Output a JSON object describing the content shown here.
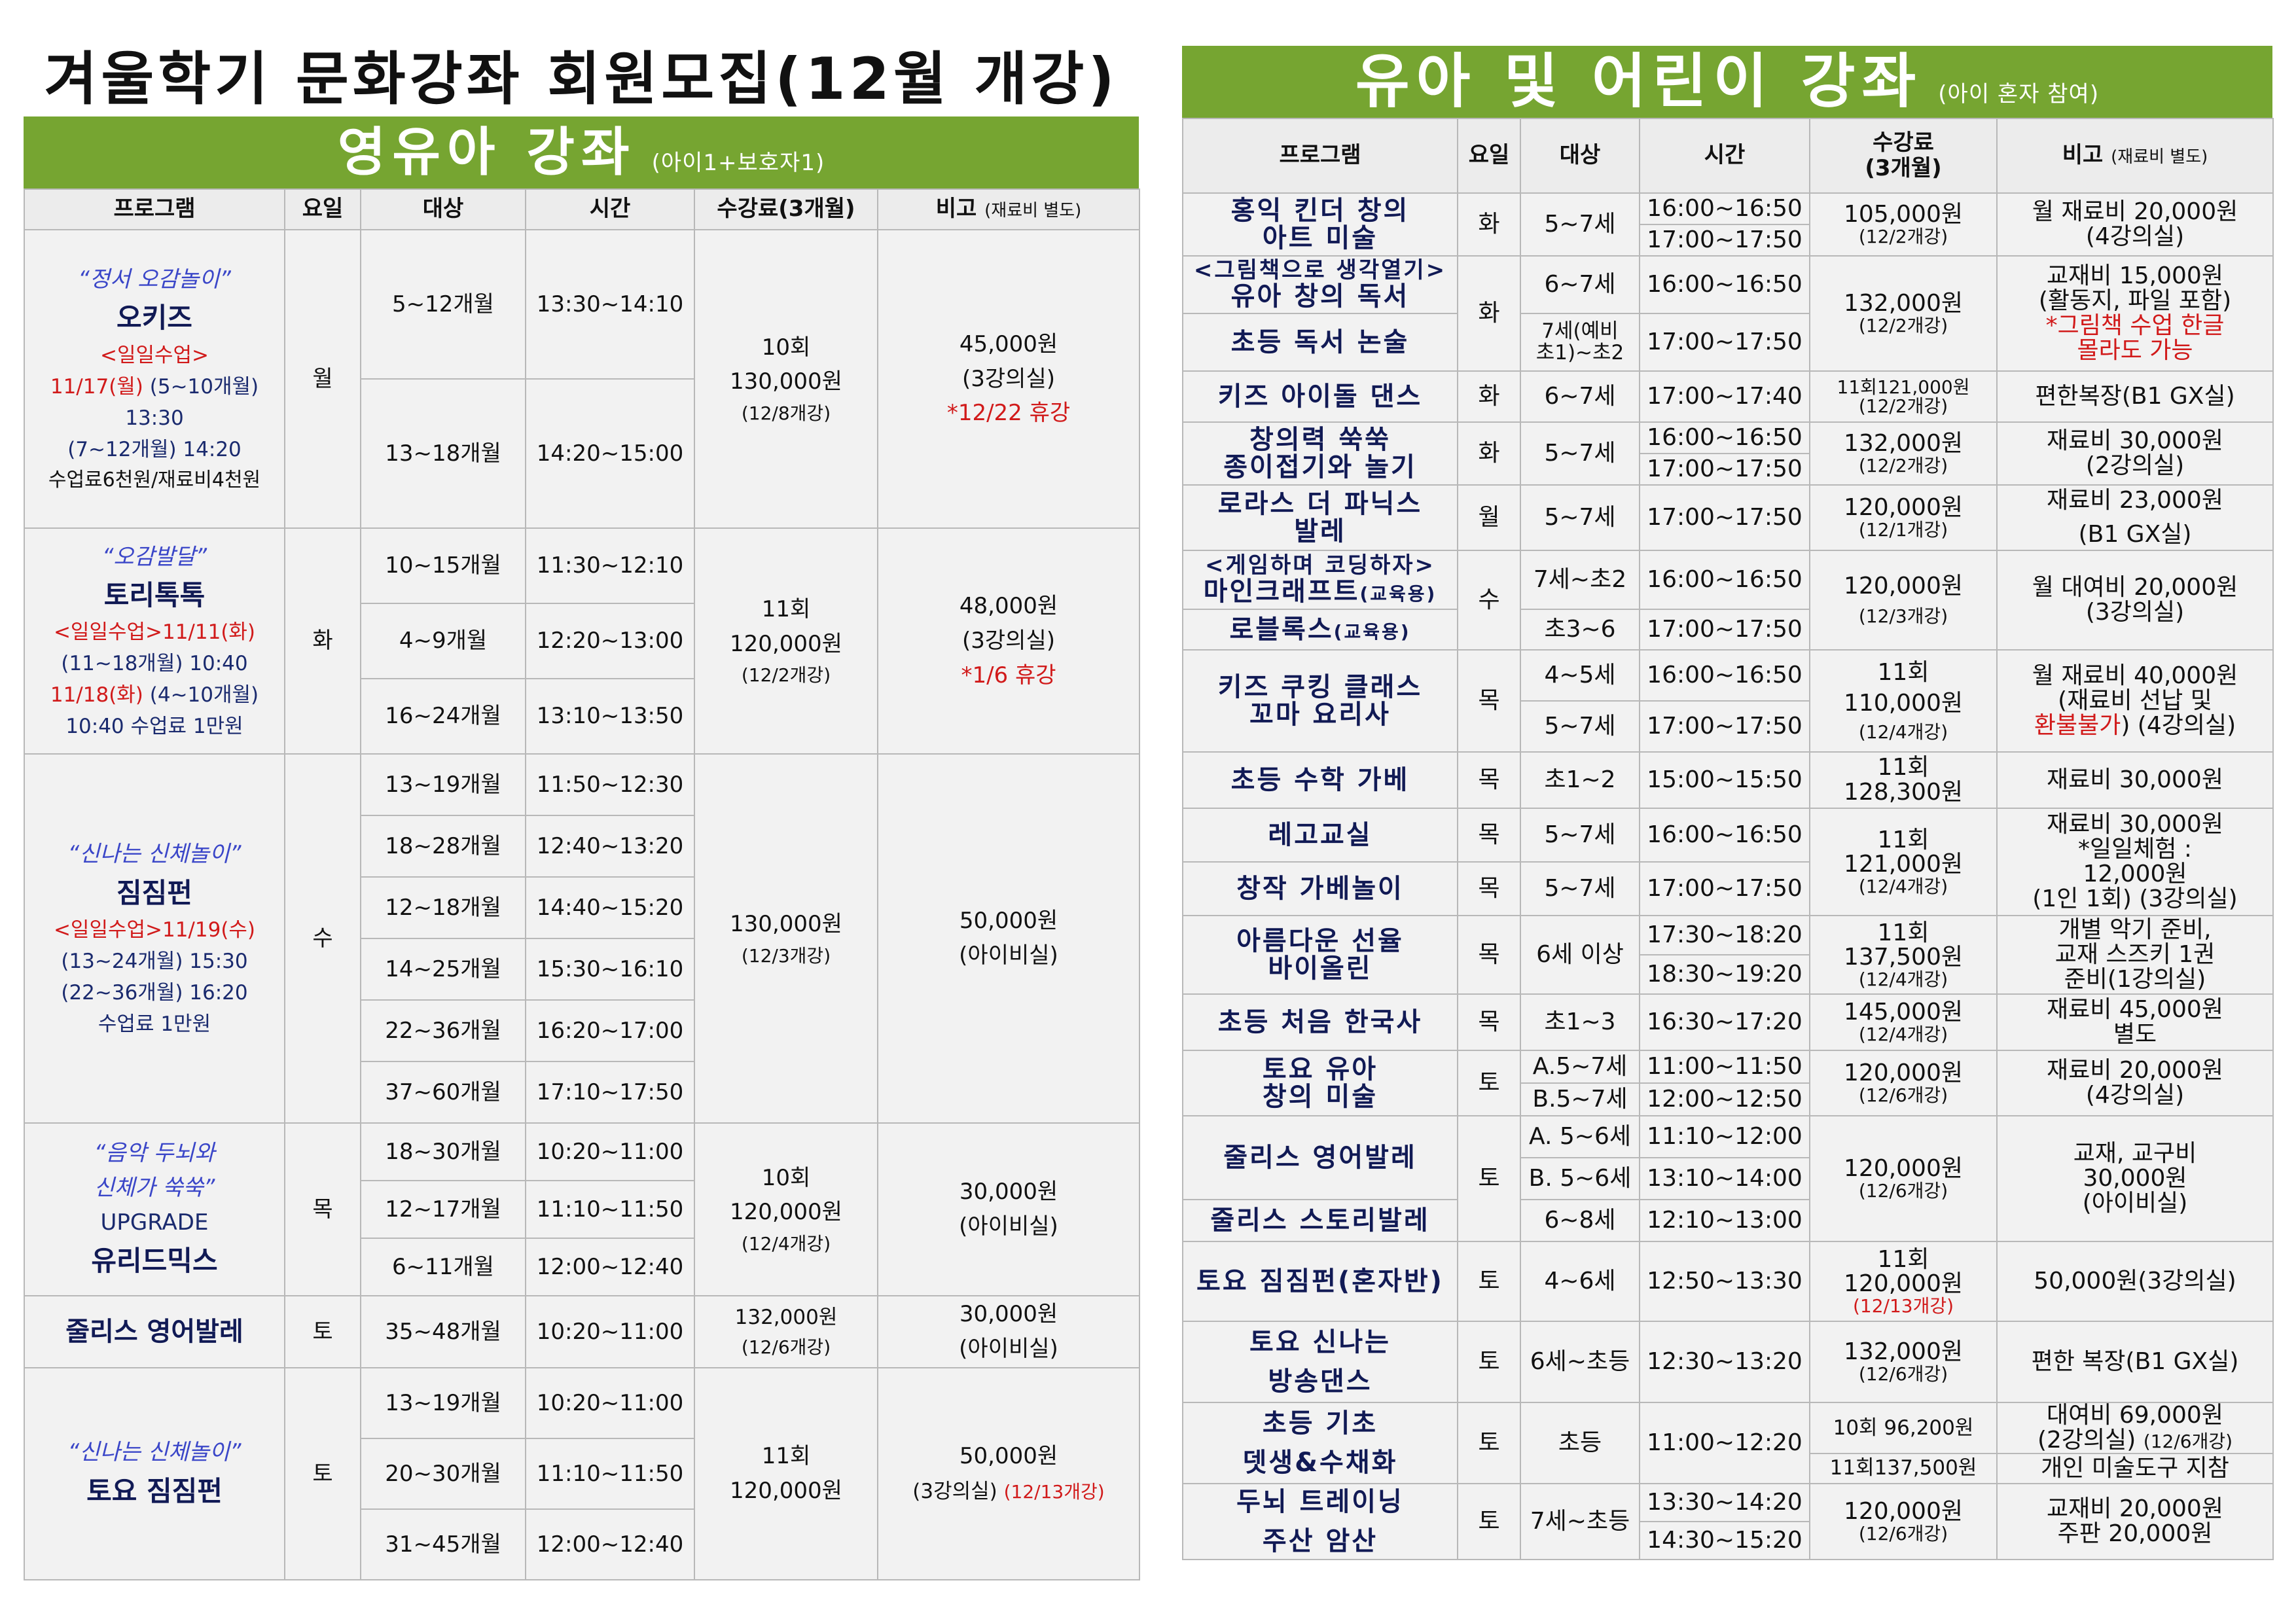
{
  "left": {
    "title": "겨울학기 문화강좌 회원모집(12월 개강)",
    "banner": {
      "title": "영유아 강좌",
      "sub": "(아이1+보호자1)"
    },
    "headers": {
      "program": "프로그램",
      "day": "요일",
      "target": "대상",
      "time": "시간",
      "fee": "수강료(3개월)",
      "note": "비고",
      "note_small": "(재료비 별도)"
    },
    "groups": [
      {
        "tag": "“정서 오감놀이”",
        "name": "오키즈",
        "promo": "<일일수업>",
        "detail1a": "11/17(월)",
        "detail1b": " (5~10개월)",
        "detail2": "13:30",
        "detail3": "(7~12개월) 14:20",
        "detail4": "수업료6천원/재료비4천원",
        "day": "월",
        "rows": [
          {
            "target": "5~12개월",
            "time": "13:30~14:10"
          },
          {
            "target": "13~18개월",
            "time": "14:20~15:00"
          }
        ],
        "fee1": "10회",
        "fee2": "130,000원",
        "fee3": "(12/8개강)",
        "note1": "45,000원",
        "note2": "(3강의실)",
        "note3": "*12/22 휴강"
      },
      {
        "tag": "“오감발달”",
        "name": "토리톡톡",
        "promo": "<일일수업>11/11(화)",
        "detail1": "(11~18개월) 10:40",
        "detail2a": "11/18(화)",
        "detail2b": " (4~10개월)",
        "detail3": "10:40 수업료 1만원",
        "day": "화",
        "rows": [
          {
            "target": "10~15개월",
            "time": "11:30~12:10"
          },
          {
            "target": "4~9개월",
            "time": "12:20~13:00"
          },
          {
            "target": "16~24개월",
            "time": "13:10~13:50"
          }
        ],
        "fee1": "11회",
        "fee2": "120,000원",
        "fee3": "(12/2개강)",
        "note1": "48,000원",
        "note2": "(3강의실)",
        "note3": "*1/6 휴강"
      },
      {
        "tag": "“신나는 신체놀이”",
        "name": "짐짐펀",
        "promo": "<일일수업>11/19(수)",
        "detail1": "(13~24개월) 15:30",
        "detail2": "(22~36개월) 16:20",
        "detail3": "수업료 1만원",
        "day": "수",
        "rows": [
          {
            "target": "13~19개월",
            "time": "11:50~12:30"
          },
          {
            "target": "18~28개월",
            "time": "12:40~13:20"
          },
          {
            "target": "12~18개월",
            "time": "14:40~15:20"
          },
          {
            "target": "14~25개월",
            "time": "15:30~16:10"
          },
          {
            "target": "22~36개월",
            "time": "16:20~17:00"
          },
          {
            "target": "37~60개월",
            "time": "17:10~17:50"
          }
        ],
        "fee1": "130,000원",
        "fee2": "(12/3개강)",
        "note1": "50,000원",
        "note2": "(아이비실)"
      },
      {
        "tag1": "“음악 두뇌와",
        "tag2": "신체가 쑥쑥”",
        "upgrade": "UPGRADE",
        "name": "유리드믹스",
        "day": "목",
        "rows": [
          {
            "target": "18~30개월",
            "time": "10:20~11:00"
          },
          {
            "target": "12~17개월",
            "time": "11:10~11:50"
          },
          {
            "target": "6~11개월",
            "time": "12:00~12:40"
          }
        ],
        "fee1": "10회",
        "fee2": "120,000원",
        "fee3": "(12/4개강)",
        "note1": "30,000원",
        "note2": "(아이비실)"
      },
      {
        "name": "줄리스 영어발레",
        "day": "토",
        "target": "35~48개월",
        "time": "10:20~11:00",
        "fee1": "132,000원",
        "fee2": "(12/6개강)",
        "note1": "30,000원",
        "note2": "(아이비실)"
      },
      {
        "tag": "“신나는 신체놀이”",
        "name": "토요 짐짐펀",
        "day": "토",
        "rows": [
          {
            "target": "13~19개월",
            "time": "10:20~11:00"
          },
          {
            "target": "20~30개월",
            "time": "11:10~11:50"
          },
          {
            "target": "31~45개월",
            "time": "12:00~12:40"
          }
        ],
        "fee1": "11회",
        "fee2": "120,000원",
        "note1": "50,000원",
        "note2a": "(3강의실) ",
        "note2b": "(12/13개강)"
      }
    ]
  },
  "right": {
    "banner": {
      "title": "유아 및 어린이 강좌",
      "sub": "(아이 혼자 참여)"
    },
    "headers": {
      "program": "프로그램",
      "day": "요일",
      "target": "대상",
      "time": "시간",
      "fee1": "수강료",
      "fee2": "(3개월)",
      "note": "비고",
      "note_small": "(재료비 별도)"
    },
    "r1": {
      "name1": "홍익 킨더 창의",
      "name2": "아트 미술",
      "day": "화",
      "target": "5~7세",
      "time1": "16:00~16:50",
      "time2": "17:00~17:50",
      "fee1": "105,000원",
      "fee2": "(12/2개강)",
      "note1": "월 재료비 20,000원",
      "note2": "(4강의실)"
    },
    "r2": {
      "name1": "<그림책으로 생각열기>",
      "name2": "유아 창의 독서",
      "day": "화",
      "target": "6~7세",
      "time": "16:00~16:50",
      "fee1": "132,000원",
      "fee2": "(12/2개강)",
      "note1": "교재비 15,000원",
      "note2": "(활동지, 파일 포함)",
      "note3": "*그림책 수업 한글",
      "note4": "몰라도 가능"
    },
    "r3": {
      "name": "초등 독서 논술",
      "target1": "7세(예비",
      "target2": "초1)~초2",
      "time": "17:00~17:50"
    },
    "r4": {
      "name": "키즈 아이돌 댄스",
      "day": "화",
      "target": "6~7세",
      "time": "17:00~17:40",
      "fee1": "11회121,000원",
      "fee2": "(12/2개강)",
      "note": "편한복장(B1 GX실)"
    },
    "r5": {
      "name1": "창의력 쑥쑥",
      "name2": "종이접기와 놀기",
      "day": "화",
      "target": "5~7세",
      "time1": "16:00~16:50",
      "time2": "17:00~17:50",
      "fee1": "132,000원",
      "fee2": "(12/2개강)",
      "note1": "재료비 30,000원",
      "note2": "(2강의실)"
    },
    "r6": {
      "name1": "로라스 더 파닉스",
      "name2": "발레",
      "day": "월",
      "target": "5~7세",
      "time": "17:00~17:50",
      "fee1": "120,000원",
      "fee2": "(12/1개강)",
      "note1": "재료비 23,000원",
      "note2": "(B1 GX실)"
    },
    "r7": {
      "name1": "<게임하며 코딩하자>",
      "name2": "마인크래프트",
      "name2s": "(교육용)",
      "day": "수",
      "target": "7세~초2",
      "time": "16:00~16:50",
      "fee1": "120,000원",
      "fee2": "(12/3개강)",
      "note1": "월 대여비 20,000원",
      "note2": "(3강의실)"
    },
    "r8": {
      "name": "로블록스",
      "name_s": "(교육용)",
      "target": "초3~6",
      "time": "17:00~17:50"
    },
    "r9": {
      "name1": "키즈 쿠킹 클래스",
      "name2": "꼬마 요리사",
      "day": "목",
      "target1": "4~5세",
      "target2": "5~7세",
      "time1": "16:00~16:50",
      "time2": "17:00~17:50",
      "fee1": "11회",
      "fee2": "110,000원",
      "fee3": "(12/4개강)",
      "note1": "월 재료비 40,000원",
      "note2": "(재료비 선납 및",
      "note3a": "환불불가",
      "note3b": ") (4강의실)"
    },
    "r10": {
      "name": "초등 수학 가베",
      "day": "목",
      "target": "초1~2",
      "time": "15:00~15:50",
      "fee1": "11회",
      "fee2": "128,300원",
      "note": "재료비 30,000원"
    },
    "r11": {
      "name": "레고교실",
      "day": "목",
      "target": "5~7세",
      "time": "16:00~16:50",
      "fee1": "11회",
      "fee2": "121,000원",
      "fee3": "(12/4개강)",
      "note1": "재료비 30,000원",
      "note2": "*일일체험 :",
      "note3": "12,000원",
      "note4": "(1인 1회) (3강의실)"
    },
    "r12": {
      "name": "창작 가베놀이",
      "day": "목",
      "target": "5~7세",
      "time": "17:00~17:50"
    },
    "r13": {
      "name1": "아름다운 선율",
      "name2": "바이올린",
      "day": "목",
      "target": "6세 이상",
      "time1": "17:30~18:20",
      "time2": "18:30~19:20",
      "fee1": "11회",
      "fee2": "137,500원",
      "fee3": "(12/4개강)",
      "note1": "개별 악기 준비,",
      "note2": "교재 스즈키 1권",
      "note3": "준비(1강의실)"
    },
    "r14": {
      "name": "초등 처음 한국사",
      "day": "목",
      "target": "초1~3",
      "time": "16:30~17:20",
      "fee1": "145,000원",
      "fee2": "(12/4개강)",
      "note1": "재료비 45,000원",
      "note2": "별도"
    },
    "r15": {
      "name1": "토요 유아",
      "name2": "창의 미술",
      "day": "토",
      "target1": "A.5~7세",
      "target2": "B.5~7세",
      "time1": "11:00~11:50",
      "time2": "12:00~12:50",
      "fee1": "120,000원",
      "fee2": "(12/6개강)",
      "note1": "재료비 20,000원",
      "note2": "(4강의실)"
    },
    "r16": {
      "name": "줄리스 영어발레",
      "day": "토",
      "target1": "A. 5~6세",
      "target2": "B. 5~6세",
      "time1": "11:10~12:00",
      "time2": "13:10~14:00",
      "fee1": "120,000원",
      "fee2": "(12/6개강)",
      "note1": "교재, 교구비",
      "note2": "30,000원",
      "note3": "(아이비실)"
    },
    "r17": {
      "name": "줄리스 스토리발레",
      "target": "6~8세",
      "time": "12:10~13:00"
    },
    "r18": {
      "name": "토요 짐짐펀(혼자반)",
      "day": "토",
      "target": "4~6세",
      "time": "12:50~13:30",
      "fee1": "11회",
      "fee2": "120,000원",
      "fee3": "(12/13개강)",
      "note": "50,000원(3강의실)"
    },
    "r19": {
      "name1": "토요 신나는",
      "name2": "방송댄스",
      "day": "토",
      "target": "6세~초등",
      "time": "12:30~13:20",
      "fee1": "132,000원",
      "fee2": "(12/6개강)",
      "note": "편한 복장(B1 GX실)"
    },
    "r20": {
      "name1": "초등 기초",
      "name2": "뎃생&수채화",
      "day": "토",
      "target": "초등",
      "time": "11:00~12:20",
      "fee1": "10회 96,200원",
      "fee2": "11회137,500원",
      "note1a": "대여비 69,000원",
      "note1b": "(2강의실) ",
      "note1c": "(12/6개강)",
      "note2": "개인 미술도구 지참"
    },
    "r21": {
      "name1": "두뇌 트레이닝",
      "name2": "주산 암산",
      "day": "토",
      "target": "7세~초등",
      "time1": "13:30~14:20",
      "time2": "14:30~15:20",
      "fee1": "120,000원",
      "fee2": "(12/6개강)",
      "note1": "교재비 20,000원",
      "note2": "주판 20,000원"
    }
  }
}
